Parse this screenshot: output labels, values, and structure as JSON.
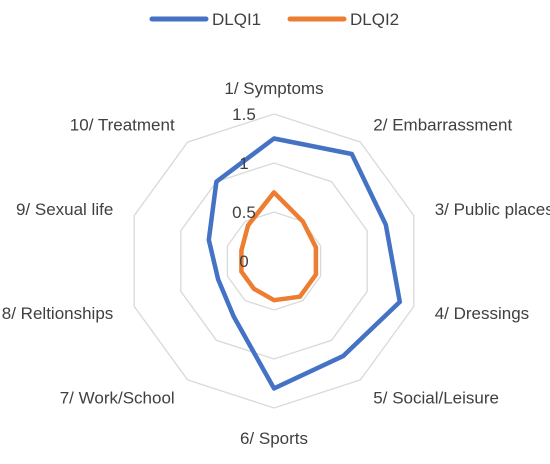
{
  "chart_data": {
    "type": "radar",
    "categories": [
      "1/ Symptoms",
      "2/ Embarrassment",
      "3/ Public places",
      "4/ Dressings",
      "5/ Social/Leisure",
      "6/ Sports",
      "7/ Work/School",
      "8/ Reltionships",
      "9/ Sexual life",
      "10/ Treatment"
    ],
    "series": [
      {
        "name": "DLQI1",
        "color": "#4472C4",
        "values": [
          1.25,
          1.35,
          1.2,
          1.35,
          1.2,
          1.3,
          0.7,
          0.6,
          0.7,
          1.0
        ]
      },
      {
        "name": "DLQI2",
        "color": "#ED7D31",
        "values": [
          0.7,
          0.5,
          0.45,
          0.45,
          0.45,
          0.4,
          0.35,
          0.35,
          0.35,
          0.45
        ]
      }
    ],
    "rlim": [
      0,
      1.5
    ],
    "ticks": [
      "0",
      "0.5",
      "1",
      "1.5"
    ],
    "gridColor": "#d9d9d9",
    "legend": "top"
  }
}
